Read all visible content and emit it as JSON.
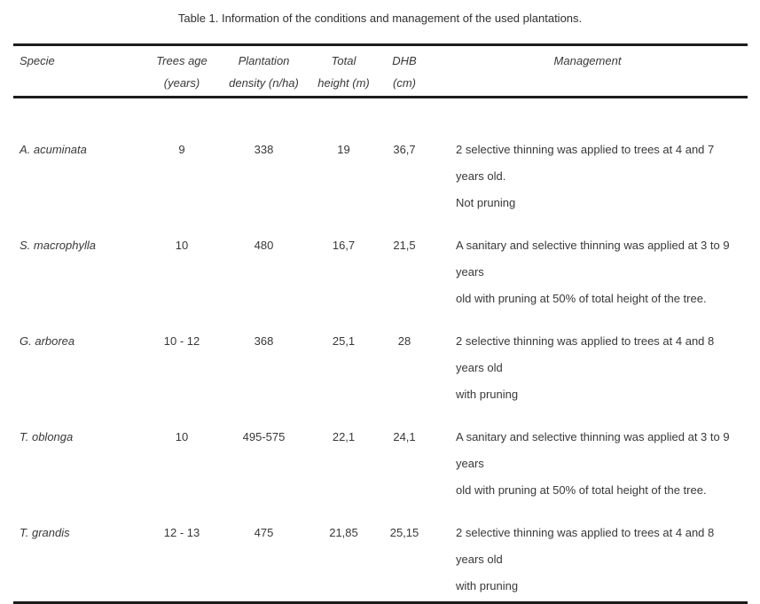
{
  "page": {
    "caption": "Table 1. Information of the conditions and management of the used plantations."
  },
  "table": {
    "columns": [
      {
        "line1": "Specie",
        "line2": ""
      },
      {
        "line1": "Trees age",
        "line2": "(years)"
      },
      {
        "line1": "Plantation",
        "line2": "density (n/ha)"
      },
      {
        "line1": "Total",
        "line2": "height (m)"
      },
      {
        "line1": "DHB",
        "line2": "(cm)"
      },
      {
        "line1": "Management",
        "line2": ""
      }
    ],
    "rows": [
      {
        "specie": "A. acuminata",
        "trees_age_years": "9",
        "plantation_density_n_ha": "338",
        "total_height_m": "19",
        "dhb_cm": "36,7",
        "management_lines": [
          "2 selective thinning was applied to trees at 4 and 7 years old.",
          "Not pruning"
        ]
      },
      {
        "specie": "S. macrophylla",
        "trees_age_years": "10",
        "plantation_density_n_ha": "480",
        "total_height_m": "16,7",
        "dhb_cm": "21,5",
        "management_lines": [
          "A sanitary and selective thinning was applied at 3 to 9 years",
          "old with pruning at 50% of total height of the tree."
        ]
      },
      {
        "specie": "G. arborea",
        "trees_age_years": "10 - 12",
        "plantation_density_n_ha": "368",
        "total_height_m": "25,1",
        "dhb_cm": "28",
        "management_lines": [
          "2 selective thinning was applied to trees at 4 and 8 years old",
          "with pruning"
        ]
      },
      {
        "specie": "T. oblonga",
        "trees_age_years": "10",
        "plantation_density_n_ha": "495-575",
        "total_height_m": "22,1",
        "dhb_cm": "24,1",
        "management_lines": [
          "A sanitary and selective thinning was applied at 3 to 9 years",
          "old with pruning at 50% of total height of the tree."
        ]
      },
      {
        "specie": "T. grandis",
        "trees_age_years": "12 - 13",
        "plantation_density_n_ha": "475",
        "total_height_m": "21,85",
        "dhb_cm": "25,15",
        "management_lines": [
          "2 selective thinning was applied to trees at 4 and 8 years old",
          "with pruning"
        ]
      }
    ]
  }
}
